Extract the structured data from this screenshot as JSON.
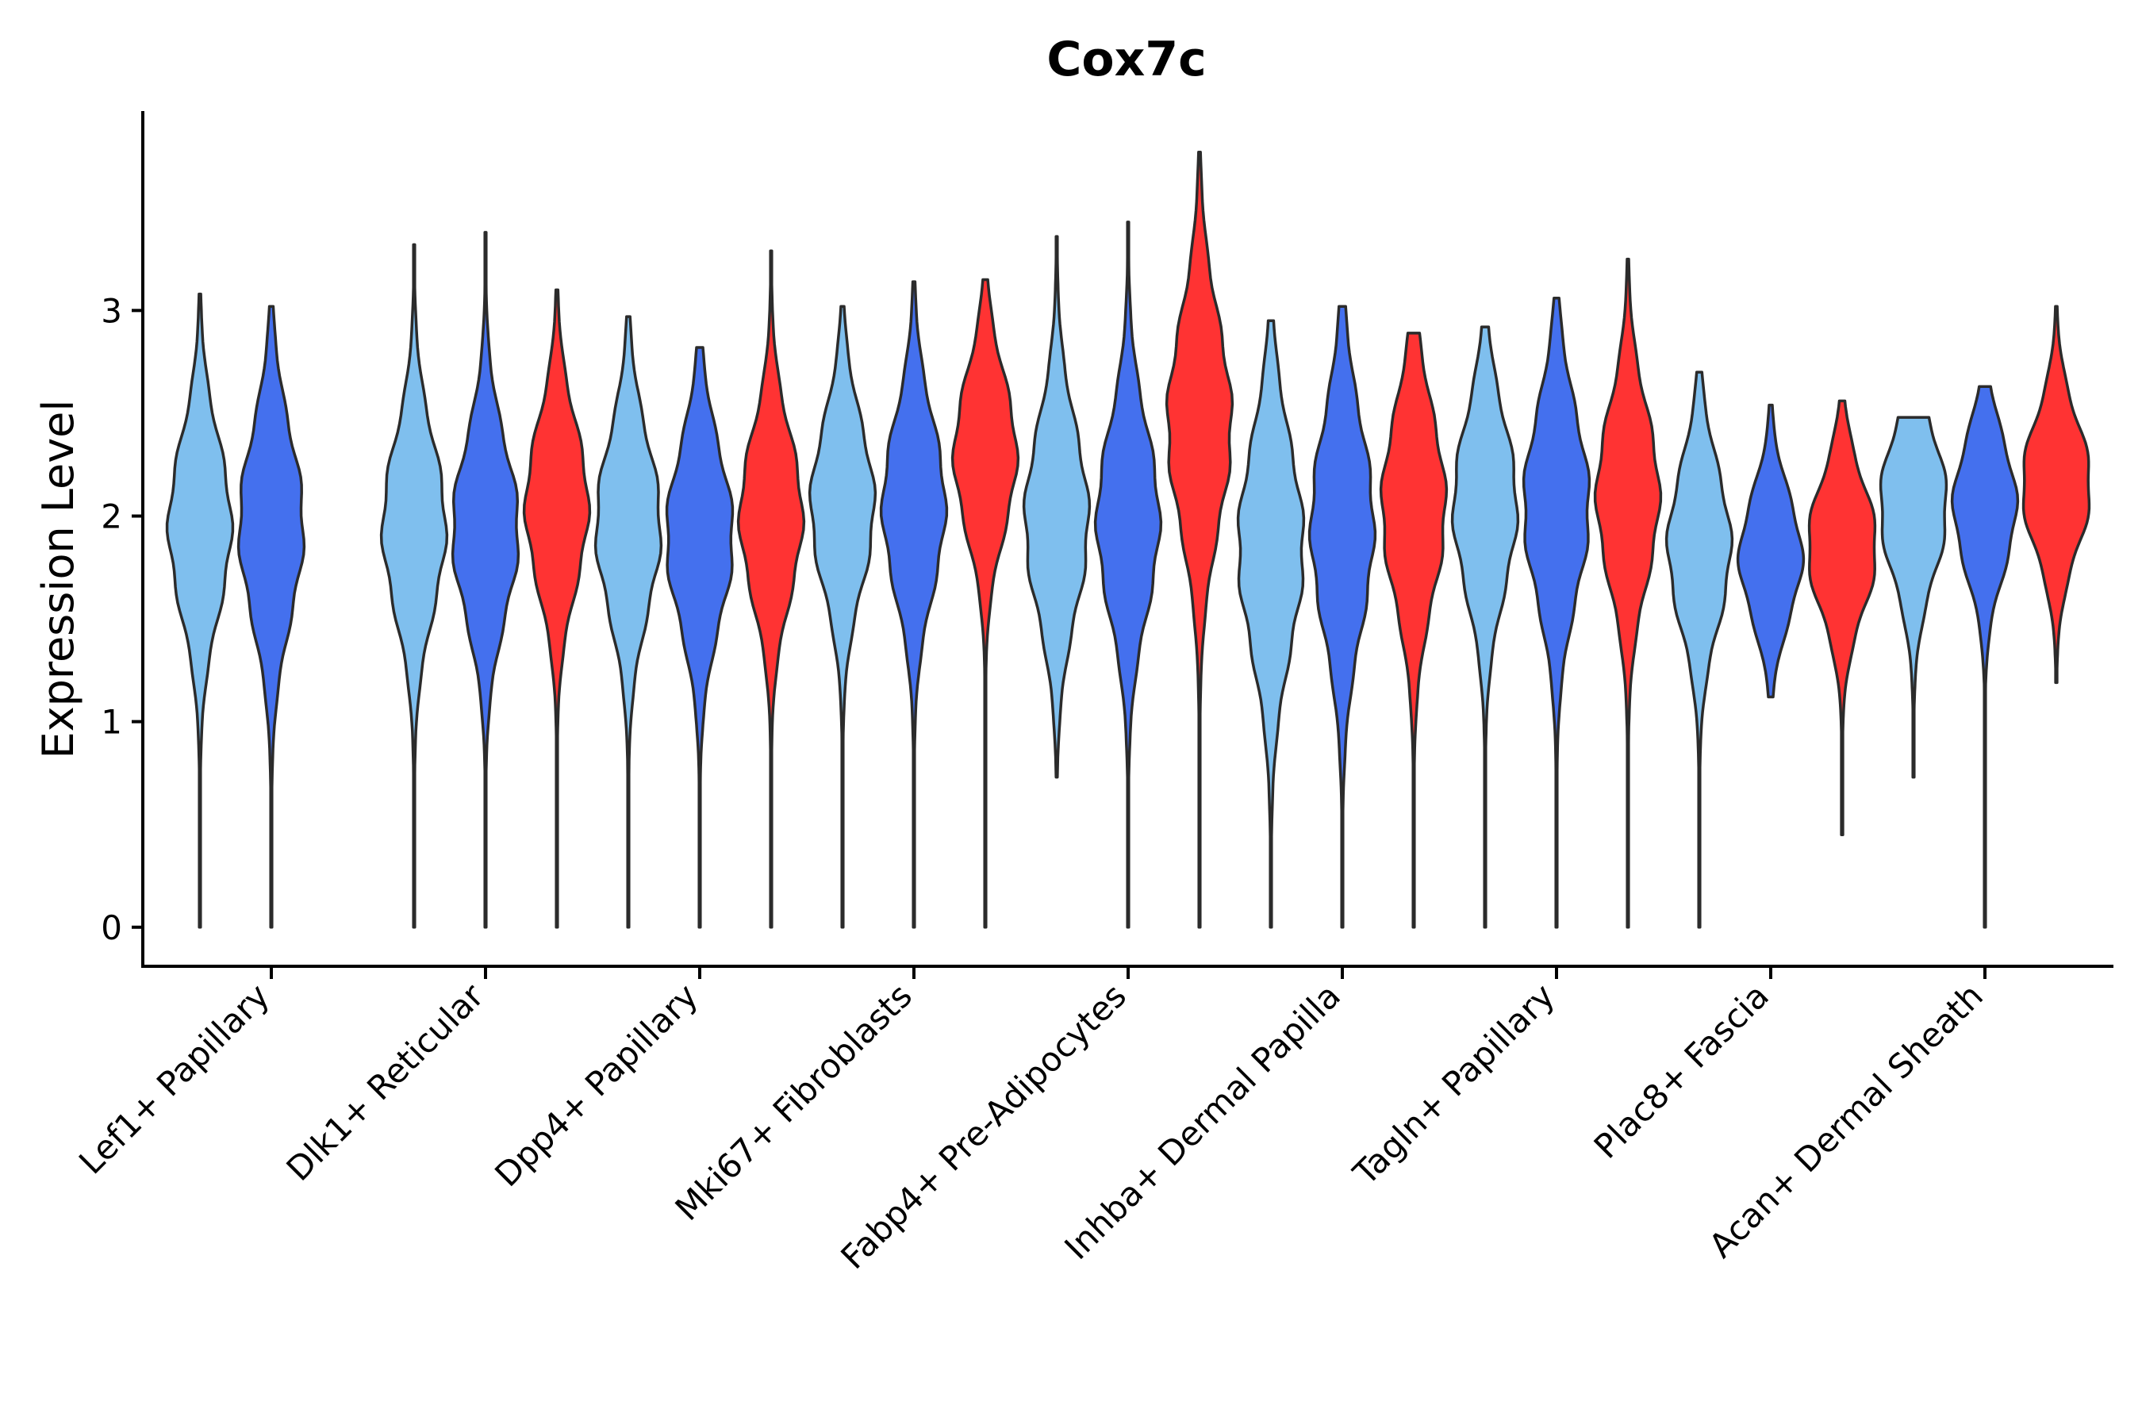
{
  "chart_data": {
    "type": "violin",
    "title": "Cox7c",
    "xlabel": "",
    "ylabel": "Expression Level",
    "ylim": [
      -0.19,
      3.97
    ],
    "yticks": [
      0,
      1,
      2,
      3
    ],
    "grid": false,
    "legend": "none",
    "series": [
      {
        "name": "group-1",
        "color": "#7fbfee"
      },
      {
        "name": "group-2",
        "color": "#4470ee"
      },
      {
        "name": "group-3",
        "color": "#ff3333"
      }
    ],
    "categories": [
      {
        "label": "Lef1+ Papillary",
        "violins": [
          {
            "series": 0,
            "min": 0,
            "max": 3.08,
            "median": 1.95,
            "spread": 0.42,
            "width": 0.3
          },
          {
            "series": 1,
            "min": 0,
            "max": 3.02,
            "median": 1.95,
            "spread": 0.45,
            "width": 0.3
          }
        ]
      },
      {
        "label": "Dlk1+ Reticular",
        "violins": [
          {
            "series": 0,
            "min": 0,
            "max": 3.32,
            "median": 1.95,
            "spread": 0.42,
            "width": 0.3
          },
          {
            "series": 1,
            "min": 0,
            "max": 3.38,
            "median": 1.93,
            "spread": 0.42,
            "width": 0.3
          },
          {
            "series": 2,
            "min": 0,
            "max": 3.1,
            "median": 2.05,
            "spread": 0.4,
            "width": 0.3
          }
        ]
      },
      {
        "label": "Dpp4+ Papillary",
        "violins": [
          {
            "series": 0,
            "min": 0,
            "max": 2.97,
            "median": 1.95,
            "spread": 0.42,
            "width": 0.3
          },
          {
            "series": 1,
            "min": 0,
            "max": 2.82,
            "median": 1.9,
            "spread": 0.42,
            "width": 0.3
          },
          {
            "series": 2,
            "min": 0,
            "max": 3.29,
            "median": 2.0,
            "spread": 0.4,
            "width": 0.3
          }
        ]
      },
      {
        "label": "Mki67+ Fibroblasts",
        "violins": [
          {
            "series": 0,
            "min": 0,
            "max": 3.02,
            "median": 2.05,
            "spread": 0.4,
            "width": 0.3
          },
          {
            "series": 1,
            "min": 0,
            "max": 3.14,
            "median": 2.05,
            "spread": 0.42,
            "width": 0.3
          },
          {
            "series": 2,
            "min": 0,
            "max": 3.15,
            "median": 2.3,
            "spread": 0.38,
            "width": 0.3
          }
        ]
      },
      {
        "label": "Fabp4+ Pre-Adipocytes",
        "violins": [
          {
            "series": 0,
            "min": 0.73,
            "max": 3.36,
            "median": 1.98,
            "spread": 0.45,
            "width": 0.3
          },
          {
            "series": 1,
            "min": 0,
            "max": 3.43,
            "median": 1.98,
            "spread": 0.45,
            "width": 0.3
          },
          {
            "series": 2,
            "min": 0,
            "max": 3.77,
            "median": 2.45,
            "spread": 0.5,
            "width": 0.3
          }
        ]
      },
      {
        "label": "Inhba+ Dermal Papilla",
        "violins": [
          {
            "series": 0,
            "min": 0,
            "max": 2.95,
            "median": 1.85,
            "spread": 0.5,
            "width": 0.3
          },
          {
            "series": 1,
            "min": 0,
            "max": 3.02,
            "median": 1.95,
            "spread": 0.5,
            "width": 0.3
          },
          {
            "series": 2,
            "min": 0,
            "max": 2.89,
            "median": 2.05,
            "spread": 0.45,
            "width": 0.3
          }
        ]
      },
      {
        "label": "Tagln+ Papillary",
        "violins": [
          {
            "series": 0,
            "min": 0,
            "max": 2.92,
            "median": 2.05,
            "spread": 0.42,
            "width": 0.3
          },
          {
            "series": 1,
            "min": 0,
            "max": 3.06,
            "median": 2.05,
            "spread": 0.45,
            "width": 0.3
          },
          {
            "series": 2,
            "min": 0,
            "max": 3.25,
            "median": 2.1,
            "spread": 0.42,
            "width": 0.3
          }
        ]
      },
      {
        "label": "Plac8+ Fascia",
        "violins": [
          {
            "series": 0,
            "min": 0,
            "max": 2.7,
            "median": 1.85,
            "spread": 0.38,
            "width": 0.3
          },
          {
            "series": 1,
            "min": 1.12,
            "max": 2.54,
            "median": 1.8,
            "spread": 0.3,
            "width": 0.3
          },
          {
            "series": 2,
            "min": 0.45,
            "max": 2.56,
            "median": 1.85,
            "spread": 0.32,
            "width": 0.3
          }
        ]
      },
      {
        "label": "Acan+ Dermal Sheath",
        "violins": [
          {
            "series": 0,
            "min": 0.73,
            "max": 2.48,
            "median": 2.05,
            "spread": 0.35,
            "width": 0.3
          },
          {
            "series": 1,
            "min": 0,
            "max": 2.63,
            "median": 2.05,
            "spread": 0.32,
            "width": 0.3
          },
          {
            "series": 2,
            "min": 1.19,
            "max": 3.02,
            "median": 2.15,
            "spread": 0.32,
            "width": 0.3
          }
        ]
      }
    ]
  }
}
